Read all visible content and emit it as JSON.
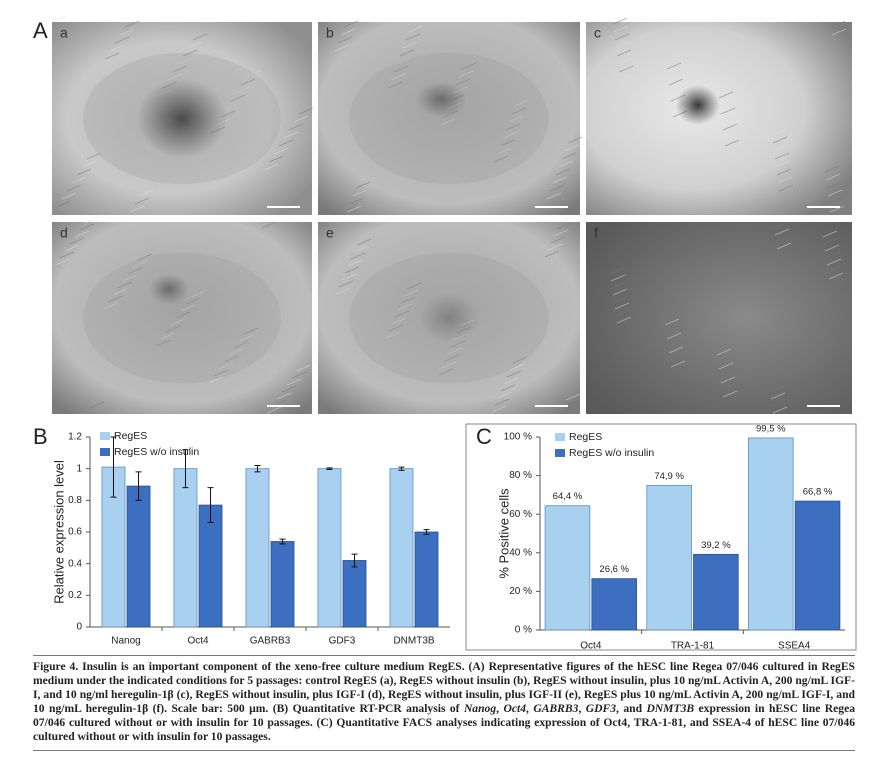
{
  "figure": {
    "panels": [
      "A",
      "B",
      "C"
    ],
    "subpanels": [
      "a",
      "b",
      "c",
      "d",
      "e",
      "f"
    ]
  },
  "chart_data": [
    {
      "type": "bar",
      "ylabel": "Relative expression level",
      "categories": [
        "Nanog",
        "Oct4",
        "GABRB3",
        "GDF3",
        "DNMT3B"
      ],
      "series": [
        {
          "name": "RegES",
          "color": "#a9d0ee",
          "values": [
            1.01,
            1.0,
            1.0,
            1.0,
            1.0
          ],
          "errors": [
            0.19,
            0.12,
            0.02,
            0.005,
            0.01
          ]
        },
        {
          "name": "RegES w/o insulin",
          "color": "#3c6fbf",
          "values": [
            0.89,
            0.77,
            0.54,
            0.42,
            0.6
          ],
          "errors": [
            0.09,
            0.11,
            0.015,
            0.04,
            0.015
          ]
        }
      ],
      "ylim": [
        0,
        1.2
      ],
      "yticks": [
        0,
        0.2,
        0.4,
        0.6,
        0.8,
        1,
        1.2
      ],
      "legend": "top-left"
    },
    {
      "type": "bar",
      "ylabel": "% Positive cells",
      "categories": [
        "Oct4",
        "TRA-1-81",
        "SSEA4"
      ],
      "series": [
        {
          "name": "RegES",
          "color": "#a9d0ee",
          "values": [
            64.4,
            74.9,
            99.5
          ],
          "value_labels": [
            "64,4 %",
            "74,9 %",
            "99,5 %"
          ]
        },
        {
          "name": "RegES w/o insulin",
          "color": "#3c6fbf",
          "values": [
            26.6,
            39.2,
            66.8
          ],
          "value_labels": [
            "26,6 %",
            "39,2 %",
            "66,8 %"
          ]
        }
      ],
      "ylim": [
        0,
        100
      ],
      "yticks": [
        {
          "value": 0,
          "label": "0 %"
        },
        {
          "value": 20,
          "label": "20 %"
        },
        {
          "value": 40,
          "label": "40 %"
        },
        {
          "value": 60,
          "label": "60 %"
        },
        {
          "value": 80,
          "label": "80 %"
        },
        {
          "value": 100,
          "label": "100 %"
        }
      ],
      "legend": "top-left"
    }
  ],
  "caption": {
    "title": "Figure 4. Insulin is an important component of the xeno-free culture medium RegES.",
    "body": [
      " (A) Representative figures of the hESC line Regea 07/046 cultured in RegES medium under the indicated conditions for 5 passages: control RegES (a), RegES without insulin (b), RegES without insulin, plus 10 ng/mL Activin A, 200 ng/mL IGF-I, and 10 ng/ml heregulin-1β (c), RegES without insulin, plus IGF-I (d), RegES without insulin, plus IGF-II (e), RegES plus 10 ng/mL Activin A, 200 ng/mL IGF-I, and 10 ng/mL heregulin-1β (f). Scale bar: 500 µm. (B) Quantitative RT-PCR analysis of ",
      "Nanog",
      ", ",
      "Oct4",
      ", ",
      "GABRB3",
      ", ",
      "GDF3",
      ", and ",
      "DNMT3B",
      " expression in hESC line Regea 07/046 cultured without or with insulin for 10 passages. (C) Quantitative FACS analyses indicating expression of Oct4, TRA-1-81, and SSEA-4 of hESC line 07/046 cultured without or with insulin for 10 passages."
    ]
  }
}
